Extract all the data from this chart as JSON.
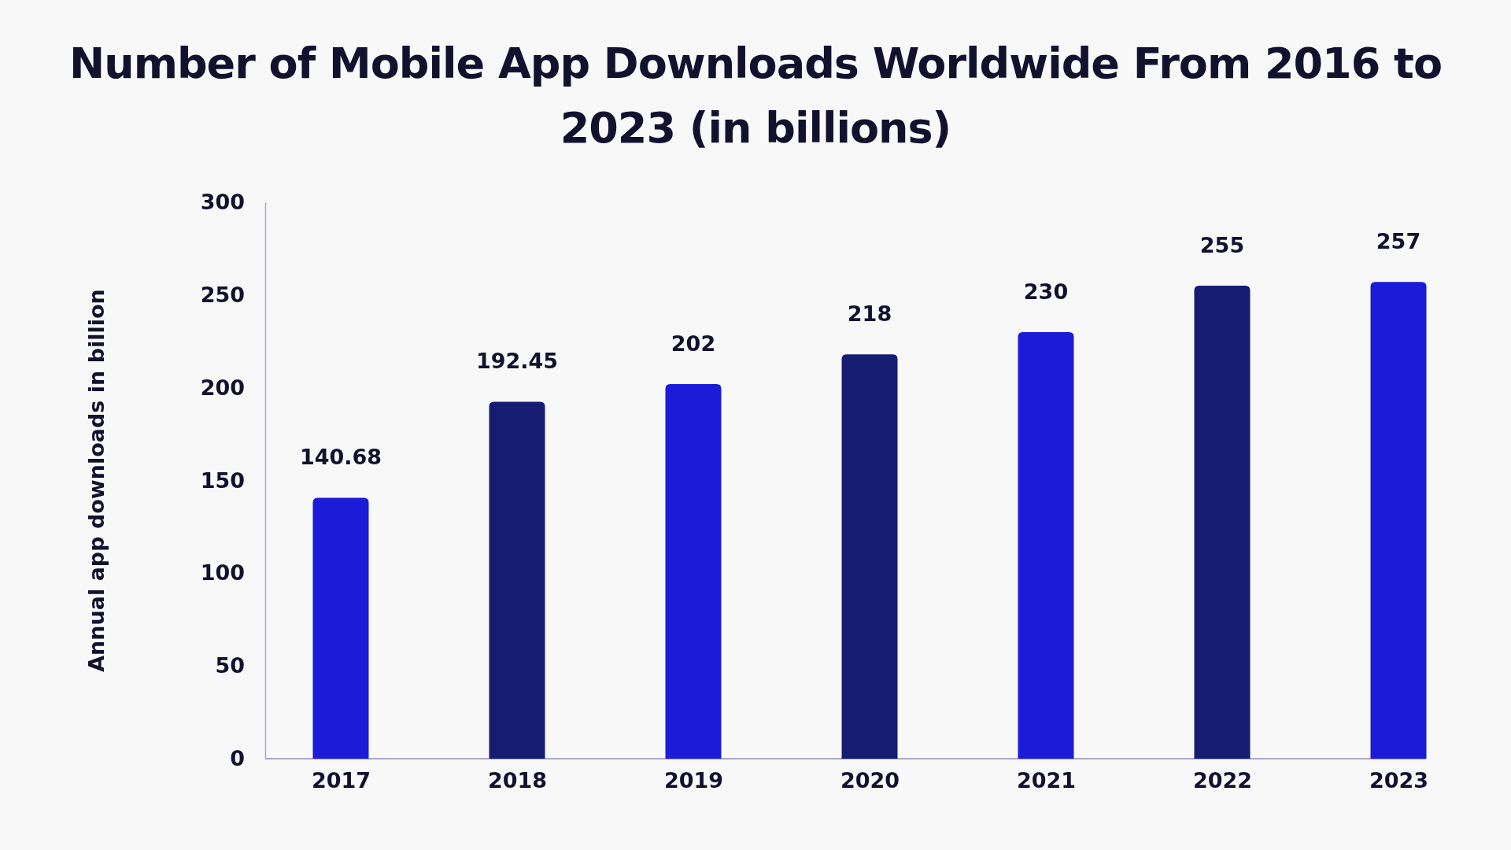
{
  "chart_data": {
    "type": "bar",
    "title": "Number of Mobile App Downloads Worldwide From 2016 to 2023 (in billions)",
    "ylabel": "Annual app downloads in billion",
    "categories": [
      "2017",
      "2018",
      "2019",
      "2020",
      "2021",
      "2022",
      "2023"
    ],
    "values": [
      140.68,
      192.45,
      202,
      218,
      230,
      255,
      257
    ],
    "colors": [
      "#1c1cd8",
      "#161c72",
      "#1c1cd8",
      "#161c72",
      "#1c1cd8",
      "#161c72",
      "#1c1cd8"
    ],
    "ylim": [
      0,
      300
    ],
    "yticks": [
      0,
      50,
      100,
      150,
      200,
      250,
      300
    ],
    "data_labels": true
  }
}
